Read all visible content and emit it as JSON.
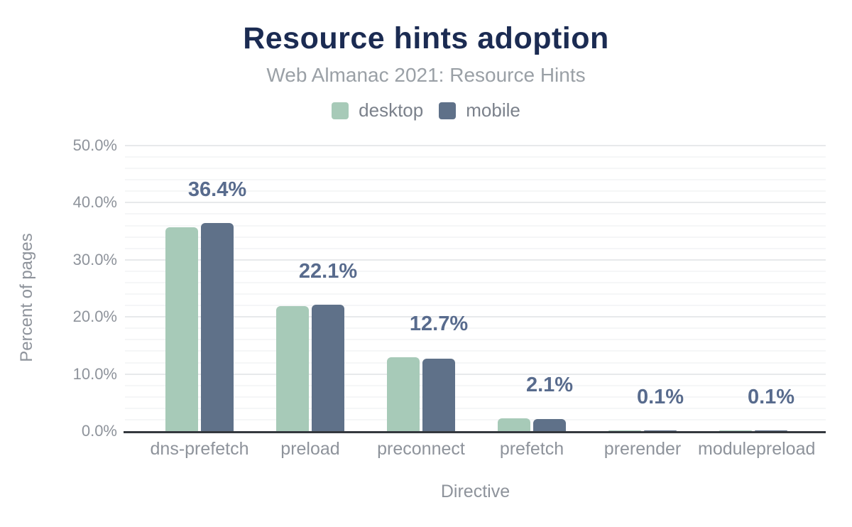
{
  "chart_data": {
    "type": "bar",
    "title": "Resource hints adoption",
    "subtitle": "Web Almanac 2021: Resource Hints",
    "xlabel": "Directive",
    "ylabel": "Percent of pages",
    "categories": [
      "dns-prefetch",
      "preload",
      "preconnect",
      "prefetch",
      "prerender",
      "modulepreload"
    ],
    "series": [
      {
        "name": "desktop",
        "color": "#a7cab8",
        "values": [
          35.7,
          21.9,
          12.9,
          2.3,
          0.1,
          0.1
        ]
      },
      {
        "name": "mobile",
        "color": "#5f7189",
        "values": [
          36.4,
          22.1,
          12.7,
          2.1,
          0.1,
          0.1
        ]
      }
    ],
    "annotations": [
      "36.4%",
      "22.1%",
      "12.7%",
      "2.1%",
      "0.1%",
      "0.1%"
    ],
    "ylim": [
      0,
      50
    ],
    "yticks": [
      {
        "value": 0,
        "label": "0.0%"
      },
      {
        "value": 10,
        "label": "10.0%"
      },
      {
        "value": 20,
        "label": "20.0%"
      },
      {
        "value": 30,
        "label": "30.0%"
      },
      {
        "value": 40,
        "label": "40.0%"
      },
      {
        "value": 50,
        "label": "50.0%"
      }
    ],
    "grid": {
      "minor_step": 2,
      "major_color": "#e7e9eb",
      "minor_color": "#f5f6f7",
      "legend_position": "top"
    },
    "colors": {
      "title": "#1b2b52",
      "subtitle": "#9aa0a6",
      "axis_text": "#8e939b",
      "legend_text": "#7b818b",
      "annotation": "#586b8d",
      "axis_line": "#34383e"
    }
  }
}
